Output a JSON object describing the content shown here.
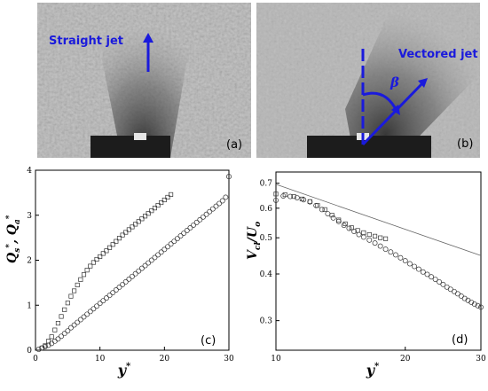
{
  "photos": {
    "a": {
      "annotation": "Straight jet",
      "label": "(a)"
    },
    "b": {
      "annotation": "Vectored jet",
      "symbol": "β",
      "label": "(b)"
    },
    "annotation_color": "#1a1adc"
  },
  "chart_data": [
    {
      "id": "c",
      "type": "scatter",
      "panel_label": "(c)",
      "xlabel": "y*",
      "ylabel": "Qs*, Qa*",
      "xlim": [
        0,
        30
      ],
      "ylim": [
        0,
        4
      ],
      "x_ticks": [
        "0",
        "10",
        "20",
        "30"
      ],
      "y_ticks": [
        "0",
        "1",
        "2",
        "3",
        "4"
      ],
      "series": [
        {
          "marker": "square",
          "x": [
            1.0,
            1.5,
            2.0,
            2.5,
            3.0,
            3.5,
            4.0,
            4.5,
            5.0,
            5.5,
            6.0,
            6.5,
            7.0,
            7.5,
            8.0,
            8.5,
            9.0,
            9.5,
            10.0,
            10.5,
            11.0,
            11.5,
            12.0,
            12.5,
            13.0,
            13.5,
            14.0,
            14.5,
            15.0,
            15.5,
            16.0,
            16.5,
            17.0,
            17.5,
            18.0,
            18.5,
            19.0,
            19.5,
            20.0,
            20.5,
            21.0
          ],
          "y": [
            0.05,
            0.1,
            0.2,
            0.3,
            0.45,
            0.6,
            0.75,
            0.9,
            1.05,
            1.2,
            1.32,
            1.45,
            1.57,
            1.68,
            1.78,
            1.87,
            1.95,
            2.02,
            2.08,
            2.15,
            2.21,
            2.28,
            2.35,
            2.42,
            2.49,
            2.56,
            2.62,
            2.68,
            2.74,
            2.8,
            2.86,
            2.92,
            2.98,
            3.04,
            3.1,
            3.16,
            3.22,
            3.28,
            3.34,
            3.4,
            3.46
          ]
        },
        {
          "marker": "circle",
          "x": [
            0.5,
            1.0,
            1.5,
            2.0,
            2.5,
            3.0,
            3.5,
            4.0,
            4.5,
            5.0,
            5.5,
            6.0,
            6.5,
            7.0,
            7.5,
            8.0,
            8.5,
            9.0,
            9.5,
            10.0,
            10.5,
            11.0,
            11.5,
            12.0,
            12.5,
            13.0,
            13.5,
            14.0,
            14.5,
            15.0,
            15.5,
            16.0,
            16.5,
            17.0,
            17.5,
            18.0,
            18.5,
            19.0,
            19.5,
            20.0,
            20.5,
            21.0,
            21.5,
            22.0,
            22.5,
            23.0,
            23.5,
            24.0,
            24.5,
            25.0,
            25.5,
            26.0,
            26.5,
            27.0,
            27.5,
            28.0,
            28.5,
            29.0,
            29.5,
            30.0
          ],
          "y": [
            0.02,
            0.05,
            0.08,
            0.11,
            0.15,
            0.2,
            0.25,
            0.31,
            0.37,
            0.43,
            0.5,
            0.56,
            0.62,
            0.68,
            0.74,
            0.8,
            0.86,
            0.92,
            0.98,
            1.04,
            1.1,
            1.16,
            1.22,
            1.28,
            1.34,
            1.4,
            1.46,
            1.52,
            1.58,
            1.64,
            1.7,
            1.76,
            1.82,
            1.88,
            1.94,
            2.0,
            2.06,
            2.12,
            2.18,
            2.24,
            2.3,
            2.36,
            2.42,
            2.48,
            2.54,
            2.6,
            2.66,
            2.72,
            2.78,
            2.84,
            2.9,
            2.96,
            3.02,
            3.08,
            3.14,
            3.2,
            3.26,
            3.32,
            3.4,
            3.86
          ]
        }
      ]
    },
    {
      "id": "d",
      "type": "scatter",
      "panel_label": "(d)",
      "xlabel": "y*",
      "ylabel": "Vcl/Uo",
      "xscale": "log",
      "yscale": "log",
      "xlim": [
        10,
        30
      ],
      "ylim": [
        0.25,
        0.75
      ],
      "x_ticks": [
        "10",
        "20",
        "30"
      ],
      "y_ticks": [
        "0.3",
        "0.4",
        "0.5",
        "0.6",
        "0.7"
      ],
      "series": [
        {
          "marker": "circle",
          "x": [
            10.0,
            10.4,
            10.8,
            11.2,
            11.6,
            12.0,
            12.4,
            12.8,
            13.2,
            13.6,
            14.0,
            14.4,
            14.8,
            15.2,
            15.6,
            16.0,
            16.5,
            17.0,
            17.5,
            18.0,
            18.5,
            19.0,
            19.5,
            20.0,
            20.5,
            21.0,
            21.5,
            22.0,
            22.5,
            23.0,
            23.5,
            24.0,
            24.5,
            25.0,
            25.5,
            26.0,
            26.5,
            27.0,
            27.5,
            28.0,
            28.5,
            29.0,
            29.5,
            30.0
          ],
          "y": [
            0.63,
            0.647,
            0.645,
            0.64,
            0.632,
            0.624,
            0.61,
            0.595,
            0.58,
            0.565,
            0.553,
            0.54,
            0.53,
            0.52,
            0.51,
            0.502,
            0.493,
            0.484,
            0.475,
            0.466,
            0.458,
            0.45,
            0.442,
            0.434,
            0.426,
            0.419,
            0.412,
            0.405,
            0.399,
            0.393,
            0.387,
            0.381,
            0.375,
            0.369,
            0.364,
            0.359,
            0.354,
            0.349,
            0.344,
            0.34,
            0.336,
            0.332,
            0.329,
            0.326
          ]
        },
        {
          "marker": "square",
          "x": [
            10.0,
            10.5,
            11.0,
            11.5,
            12.0,
            12.5,
            13.0,
            13.5,
            14.0,
            14.5,
            15.0,
            15.5,
            16.0,
            16.5,
            17.0,
            17.5,
            18.0
          ],
          "y": [
            0.655,
            0.652,
            0.645,
            0.635,
            0.625,
            0.61,
            0.595,
            0.575,
            0.558,
            0.545,
            0.532,
            0.523,
            0.516,
            0.51,
            0.505,
            0.5,
            0.497
          ]
        },
        {
          "marker": "line",
          "x": [
            10,
            30
          ],
          "y": [
            0.695,
            0.448
          ]
        }
      ]
    }
  ]
}
